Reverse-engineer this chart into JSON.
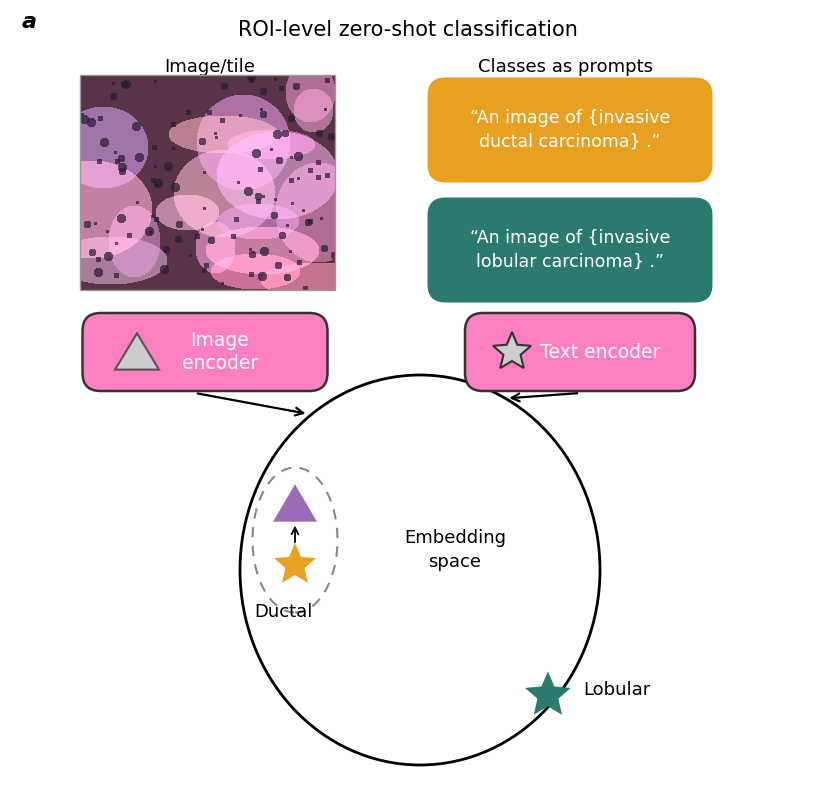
{
  "title": "ROI-level zero-shot classification",
  "label_a": "a",
  "label_image_tile": "Image/tile",
  "label_classes": "Classes as prompts",
  "box1_text": "“An image of {invasive\nductal carcinoma} .”",
  "box2_text": "“An image of {invasive\nlobular carcinoma} .”",
  "box_orange_color": "#E8A020",
  "box_teal_color": "#2A7A6F",
  "box_pink_color": "#FF80C0",
  "encoder_image_text": "Image\nencoder",
  "encoder_text_text": "Text encoder",
  "embedding_text": "Embedding\nspace",
  "ductal_label": "Ductal",
  "lobular_label": "Lobular",
  "triangle_color": "#9B6BB5",
  "triangle_gray_color": "#CCCCCC",
  "triangle_gray_edge": "#555555",
  "star_orange_color": "#E8A020",
  "star_teal_color": "#2A7A6F",
  "bg_color": "#FFFFFF",
  "text_color": "#000000",
  "arrow_color": "#000000",
  "box_border_color": "#333333",
  "dashed_ellipse_color": "#888888"
}
